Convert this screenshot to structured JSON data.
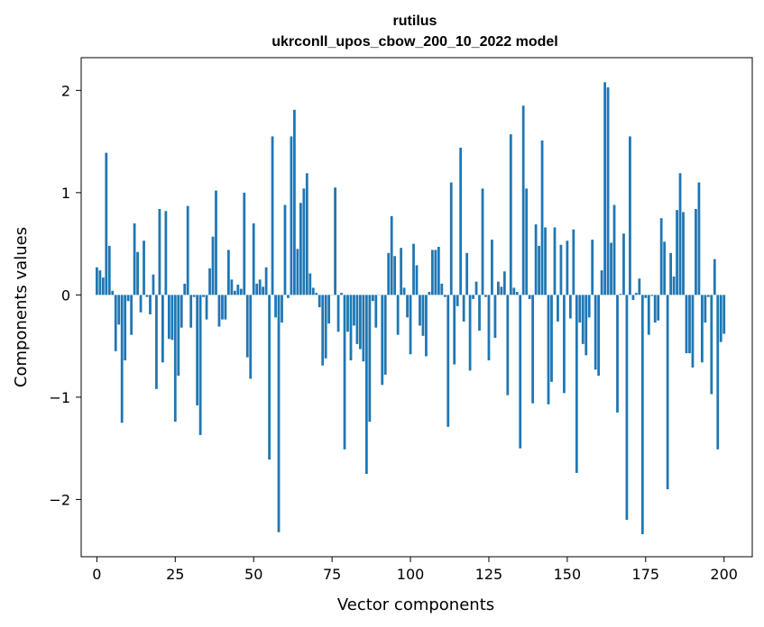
{
  "chart_data": {
    "type": "bar",
    "title": "rutilus",
    "subtitle": "ukrconll_upos_cbow_200_10_2022 model",
    "xlabel": "Vector components",
    "ylabel": "Components values",
    "xlim": [
      -5,
      209
    ],
    "ylim": [
      -2.56,
      2.32
    ],
    "xticks": [
      0,
      25,
      50,
      75,
      100,
      125,
      150,
      175,
      200
    ],
    "yticks": [
      -2,
      -1,
      0,
      1,
      2
    ],
    "ytick_labels": [
      "−2",
      "−1",
      "0",
      "1",
      "2"
    ],
    "bar_color": "#1f77b4",
    "grid": false,
    "values": [
      0.27,
      0.24,
      0.17,
      1.39,
      0.48,
      0.04,
      -0.55,
      -0.29,
      -1.25,
      -0.64,
      -0.06,
      -0.39,
      0.7,
      0.42,
      -0.17,
      0.53,
      -0.02,
      -0.19,
      0.2,
      -0.92,
      0.84,
      -0.66,
      0.82,
      -0.43,
      -0.44,
      -1.24,
      -0.79,
      -0.32,
      0.11,
      0.87,
      -0.32,
      -0.02,
      -1.08,
      -1.37,
      -0.02,
      -0.24,
      0.26,
      0.57,
      1.02,
      -0.31,
      -0.24,
      -0.24,
      0.44,
      0.15,
      0.04,
      0.1,
      0.06,
      1.0,
      -0.61,
      -0.82,
      0.7,
      0.11,
      0.15,
      0.08,
      0.27,
      -1.61,
      1.55,
      -0.22,
      -2.32,
      -0.27,
      0.88,
      -0.03,
      1.55,
      1.81,
      0.45,
      0.9,
      1.04,
      1.19,
      0.21,
      0.07,
      0.02,
      -0.12,
      -0.69,
      -0.62,
      -0.28,
      0.0,
      1.05,
      -0.36,
      0.02,
      -1.51,
      -0.36,
      -0.64,
      -0.3,
      -0.48,
      -0.53,
      -0.65,
      -1.75,
      -1.24,
      -0.06,
      -0.32,
      0.0,
      -0.88,
      -0.78,
      0.41,
      0.77,
      0.38,
      -0.39,
      0.46,
      0.07,
      -0.22,
      -0.58,
      0.5,
      0.29,
      -0.3,
      -0.4,
      -0.6,
      0.03,
      0.44,
      0.44,
      0.47,
      0.11,
      -0.02,
      -1.29,
      1.1,
      -0.68,
      -0.11,
      1.44,
      -0.26,
      0.41,
      -0.74,
      -0.04,
      0.13,
      -0.35,
      1.04,
      -0.02,
      -0.64,
      0.54,
      -0.42,
      0.13,
      0.08,
      0.23,
      -0.98,
      1.57,
      0.07,
      0.03,
      -1.5,
      1.85,
      1.04,
      -0.04,
      -1.06,
      0.69,
      0.48,
      1.51,
      0.66,
      -1.07,
      -0.85,
      0.66,
      -0.26,
      0.49,
      -0.96,
      0.53,
      -0.23,
      0.64,
      -1.74,
      -0.27,
      -0.48,
      -0.59,
      -0.22,
      0.54,
      -0.73,
      -0.79,
      0.24,
      2.08,
      2.03,
      0.51,
      0.88,
      -1.15,
      0.01,
      0.6,
      -2.2,
      1.55,
      -0.05,
      0.02,
      0.16,
      -2.34,
      -0.03,
      -0.39,
      -0.01,
      -0.27,
      -0.25,
      0.75,
      0.52,
      -1.9,
      0.41,
      0.18,
      0.83,
      1.19,
      0.81,
      -0.57,
      -0.57,
      -0.71,
      0.84,
      1.1,
      -0.66,
      -0.27,
      -0.02,
      -0.97,
      0.35,
      -1.51,
      -0.46,
      -0.38
    ]
  }
}
